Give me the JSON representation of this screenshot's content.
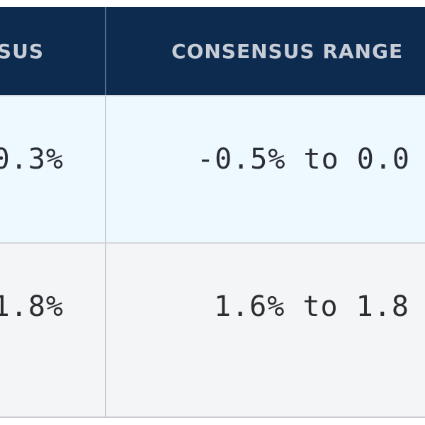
{
  "table": {
    "headers": [
      "SUS",
      "CONSENSUS RANGE"
    ],
    "rows": [
      {
        "consensus": "0.3%",
        "range": "-0.5% to 0.0"
      },
      {
        "consensus": "1.8%",
        "range": "1.6% to 1.8"
      }
    ]
  },
  "colors": {
    "header_bg": "#0d2a4f",
    "header_text": "#c7cdd6",
    "row1_bg": "#eef8ff",
    "row2_bg": "#f4f5f6",
    "text": "#2b2f33"
  }
}
